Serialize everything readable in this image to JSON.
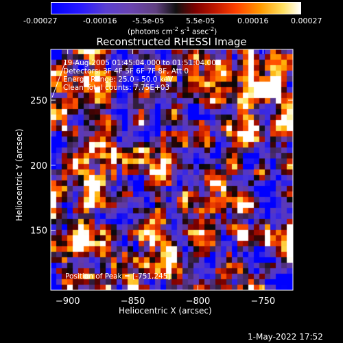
{
  "colorbar": {
    "tick_labels": [
      "-0.00027",
      "-0.00016",
      "-5.5e-05",
      "5.5e-05",
      "0.00016",
      "0.00027"
    ],
    "unit_prefix": "(photons cm",
    "unit_exp1": "-2",
    "unit_mid": " s",
    "unit_exp2": "-1",
    "unit_mid2": " asec",
    "unit_exp3": "-2",
    "unit_suffix": ")"
  },
  "annotations": {
    "time_range": "19-Aug-2005 01:45:04.000 to 01:51:04.000",
    "detectors": "Detectors: 3F 4F 5F 6F 7F 8F, Att 0",
    "energy": "Energy Range: 25.0 - 50.0 keV",
    "clean": "Clean     Total counts: 7.75E+03",
    "peak": "Position of Peak = [-751,245]"
  },
  "footer": {
    "timestamp": "1-May-2022 17:52"
  },
  "chart_data": {
    "type": "heatmap",
    "title": "Reconstructed RHESSI Image",
    "xlabel": "Heliocentric X (arcsec)",
    "ylabel": "Heliocentric Y (arcsec)",
    "xlim": [
      -913,
      -727
    ],
    "ylim": [
      104,
      289
    ],
    "x_ticks": [
      -900,
      -850,
      -800,
      -750
    ],
    "x_tick_labels": [
      "−900",
      "−850",
      "−800",
      "−750"
    ],
    "y_ticks": [
      150,
      200,
      250
    ],
    "y_tick_labels": [
      "150",
      "200",
      "250"
    ],
    "zlim": [
      -0.00027,
      0.00027
    ],
    "peak": [
      -751,
      245
    ]
  }
}
